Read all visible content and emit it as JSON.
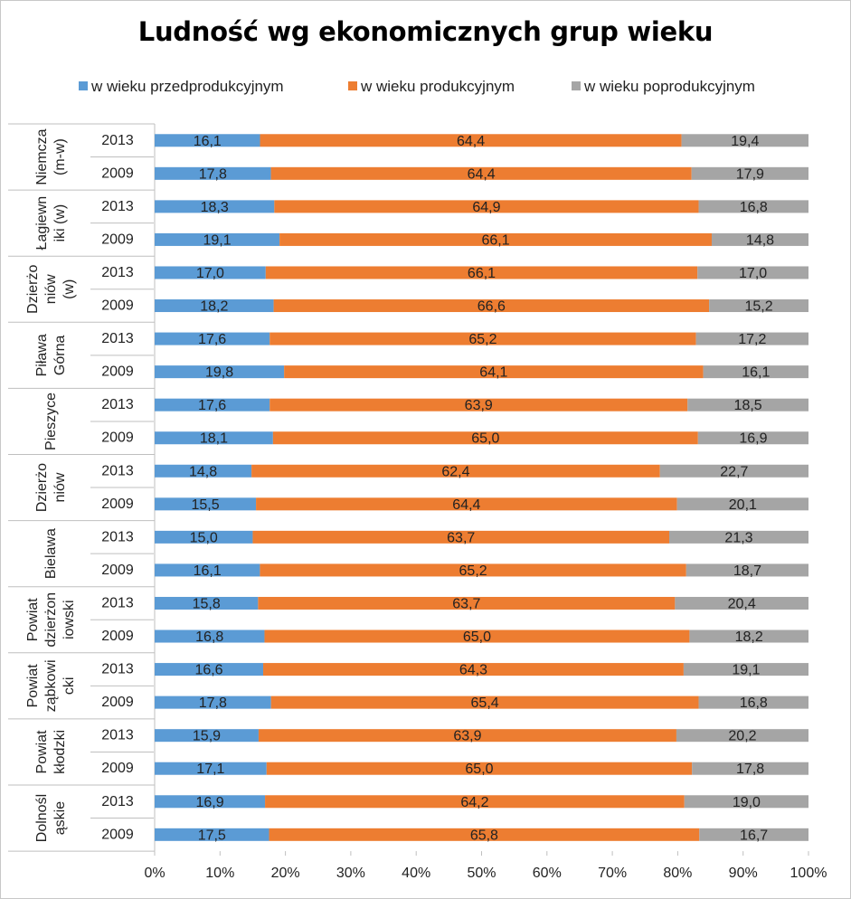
{
  "chart_data": {
    "type": "bar",
    "orientation": "horizontal",
    "stacked": true,
    "normalized_percent": true,
    "title": "Ludność wg ekonomicznych grup wieku",
    "legend_position": "top",
    "series_names": [
      "w wieku przedprodukcyjnym",
      "w wieku produkcyjnym",
      "w wieku poprodukcyjnym"
    ],
    "colors": [
      "#5b9bd5",
      "#ed7d31",
      "#a5a5a5"
    ],
    "x_ticks": [
      "0%",
      "10%",
      "20%",
      "30%",
      "40%",
      "50%",
      "60%",
      "70%",
      "80%",
      "90%",
      "100%"
    ],
    "xlim": [
      0,
      100
    ],
    "groups": [
      {
        "label_lines": [
          "Niemcza",
          "(m-w)"
        ],
        "rows": [
          {
            "year": "2013",
            "values": [
              "16,1",
              "64,4",
              "19,4"
            ]
          },
          {
            "year": "2009",
            "values": [
              "17,8",
              "64,4",
              "17,9"
            ]
          }
        ]
      },
      {
        "label_lines": [
          "Łagiewn",
          "iki (w)"
        ],
        "rows": [
          {
            "year": "2013",
            "values": [
              "18,3",
              "64,9",
              "16,8"
            ]
          },
          {
            "year": "2009",
            "values": [
              "19,1",
              "66,1",
              "14,8"
            ]
          }
        ]
      },
      {
        "label_lines": [
          "Dzierżo",
          "niów",
          "(w)"
        ],
        "rows": [
          {
            "year": "2013",
            "values": [
              "17,0",
              "66,1",
              "17,0"
            ]
          },
          {
            "year": "2009",
            "values": [
              "18,2",
              "66,6",
              "15,2"
            ]
          }
        ]
      },
      {
        "label_lines": [
          "Piława",
          "Górna"
        ],
        "rows": [
          {
            "year": "2013",
            "values": [
              "17,6",
              "65,2",
              "17,2"
            ]
          },
          {
            "year": "2009",
            "values": [
              "19,8",
              "64,1",
              "16,1"
            ]
          }
        ]
      },
      {
        "label_lines": [
          "Pieszyce"
        ],
        "rows": [
          {
            "year": "2013",
            "values": [
              "17,6",
              "63,9",
              "18,5"
            ]
          },
          {
            "year": "2009",
            "values": [
              "18,1",
              "65,0",
              "16,9"
            ]
          }
        ]
      },
      {
        "label_lines": [
          "Dzierżo",
          "niów"
        ],
        "rows": [
          {
            "year": "2013",
            "values": [
              "14,8",
              "62,4",
              "22,7"
            ]
          },
          {
            "year": "2009",
            "values": [
              "15,5",
              "64,4",
              "20,1"
            ]
          }
        ]
      },
      {
        "label_lines": [
          "Bielawa"
        ],
        "rows": [
          {
            "year": "2013",
            "values": [
              "15,0",
              "63,7",
              "21,3"
            ]
          },
          {
            "year": "2009",
            "values": [
              "16,1",
              "65,2",
              "18,7"
            ]
          }
        ]
      },
      {
        "label_lines": [
          "Powiat",
          "dzierżon",
          "iowski"
        ],
        "rows": [
          {
            "year": "2013",
            "values": [
              "15,8",
              "63,7",
              "20,4"
            ]
          },
          {
            "year": "2009",
            "values": [
              "16,8",
              "65,0",
              "18,2"
            ]
          }
        ]
      },
      {
        "label_lines": [
          "Powiat",
          "ząbkowi",
          "cki"
        ],
        "rows": [
          {
            "year": "2013",
            "values": [
              "16,6",
              "64,3",
              "19,1"
            ]
          },
          {
            "year": "2009",
            "values": [
              "17,8",
              "65,4",
              "16,8"
            ]
          }
        ]
      },
      {
        "label_lines": [
          "Powiat",
          "kłodzki"
        ],
        "rows": [
          {
            "year": "2013",
            "values": [
              "15,9",
              "63,9",
              "20,2"
            ]
          },
          {
            "year": "2009",
            "values": [
              "17,1",
              "65,0",
              "17,8"
            ]
          }
        ]
      },
      {
        "label_lines": [
          "Dolnośl",
          "ąskie"
        ],
        "rows": [
          {
            "year": "2013",
            "values": [
              "16,9",
              "64,2",
              "19,0"
            ]
          },
          {
            "year": "2009",
            "values": [
              "17,5",
              "65,8",
              "16,7"
            ]
          }
        ]
      }
    ]
  }
}
